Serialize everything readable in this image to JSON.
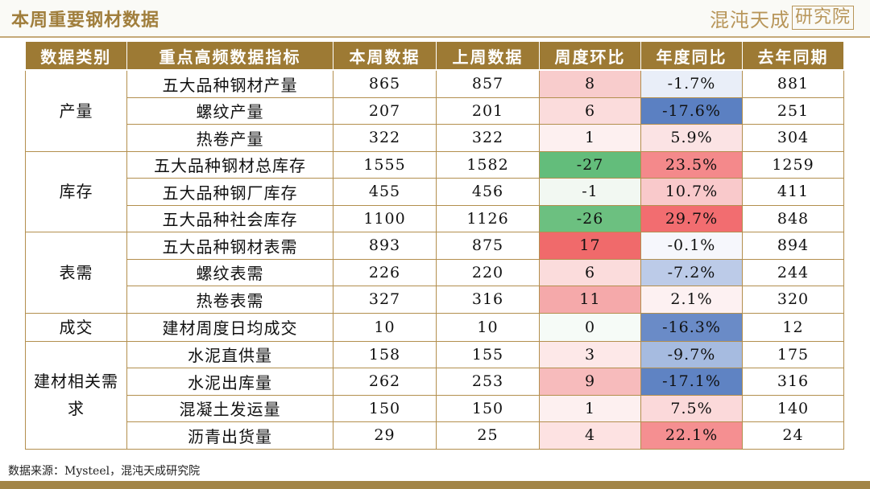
{
  "page_title": "本周重要钢材数据",
  "logo": {
    "text": "混沌天成",
    "boxed": "研究院"
  },
  "table": {
    "headers": [
      "数据类别",
      "重点高频数据指标",
      "本周数据",
      "上周数据",
      "周度环比",
      "年度同比",
      "去年同期"
    ],
    "groups": [
      {
        "category": "产量",
        "rows": [
          {
            "indicator": "五大品种钢材产量",
            "this_week": "865",
            "last_week": "857",
            "wow": "8",
            "yoy": "-1.7%",
            "last_year": "881",
            "wow_color": "#f8cccc",
            "yoy_color": "#e9eef8"
          },
          {
            "indicator": "螺纹产量",
            "this_week": "207",
            "last_week": "201",
            "wow": "6",
            "yoy": "-17.6%",
            "last_year": "251",
            "wow_color": "#fbdcdc",
            "yoy_color": "#5b80c2"
          },
          {
            "indicator": "热卷产量",
            "this_week": "322",
            "last_week": "322",
            "wow": "1",
            "yoy": "5.9%",
            "last_year": "304",
            "wow_color": "#fdf0f0",
            "yoy_color": "#fbe3e4"
          }
        ]
      },
      {
        "category": "库存",
        "rows": [
          {
            "indicator": "五大品种钢材总库存",
            "this_week": "1555",
            "last_week": "1582",
            "wow": "-27",
            "yoy": "23.5%",
            "last_year": "1259",
            "wow_color": "#63bd7b",
            "yoy_color": "#f4898b"
          },
          {
            "indicator": "五大品种钢厂库存",
            "this_week": "455",
            "last_week": "456",
            "wow": "-1",
            "yoy": "10.7%",
            "last_year": "411",
            "wow_color": "#f2f8f2",
            "yoy_color": "#f9c9cb"
          },
          {
            "indicator": "五大品种社会库存",
            "this_week": "1100",
            "last_week": "1126",
            "wow": "-26",
            "yoy": "29.7%",
            "last_year": "848",
            "wow_color": "#6cc080",
            "yoy_color": "#f26d70"
          }
        ]
      },
      {
        "category": "表需",
        "rows": [
          {
            "indicator": "五大品种钢材表需",
            "this_week": "893",
            "last_week": "875",
            "wow": "17",
            "yoy": "-0.1%",
            "last_year": "894",
            "wow_color": "#f06a6b",
            "yoy_color": "#f6f7fc"
          },
          {
            "indicator": "螺纹表需",
            "this_week": "226",
            "last_week": "220",
            "wow": "6",
            "yoy": "-7.2%",
            "last_year": "244",
            "wow_color": "#fbdcdc",
            "yoy_color": "#bccbe8"
          },
          {
            "indicator": "热卷表需",
            "this_week": "327",
            "last_week": "316",
            "wow": "11",
            "yoy": "2.1%",
            "last_year": "320",
            "wow_color": "#f5a9aa",
            "yoy_color": "#fdf1f2"
          }
        ]
      },
      {
        "category": "成交",
        "rows": [
          {
            "indicator": "建材周度日均成交",
            "this_week": "10",
            "last_week": "10",
            "wow": "0",
            "yoy": "-16.3%",
            "last_year": "12",
            "wow_color": "#f6fbf7",
            "yoy_color": "#6a8bc7"
          }
        ]
      },
      {
        "category": "建材相关需求",
        "rows": [
          {
            "indicator": "水泥直供量",
            "this_week": "158",
            "last_week": "155",
            "wow": "3",
            "yoy": "-9.7%",
            "last_year": "175",
            "wow_color": "#fde8e8",
            "yoy_color": "#a6bbe0"
          },
          {
            "indicator": "水泥出库量",
            "this_week": "262",
            "last_week": "253",
            "wow": "9",
            "yoy": "-17.1%",
            "last_year": "316",
            "wow_color": "#f7bbbc",
            "yoy_color": "#5f83c3"
          },
          {
            "indicator": "混凝土发运量",
            "this_week": "150",
            "last_week": "150",
            "wow": "1",
            "yoy": "7.5%",
            "last_year": "140",
            "wow_color": "#fdf0f0",
            "yoy_color": "#fbd9da"
          },
          {
            "indicator": "沥青出货量",
            "this_week": "29",
            "last_week": "25",
            "wow": "4",
            "yoy": "22.1%",
            "last_year": "24",
            "wow_color": "#fde2e2",
            "yoy_color": "#f58f91"
          }
        ]
      }
    ]
  },
  "source_note": "数据来源：Mysteel，混沌天成研究院"
}
